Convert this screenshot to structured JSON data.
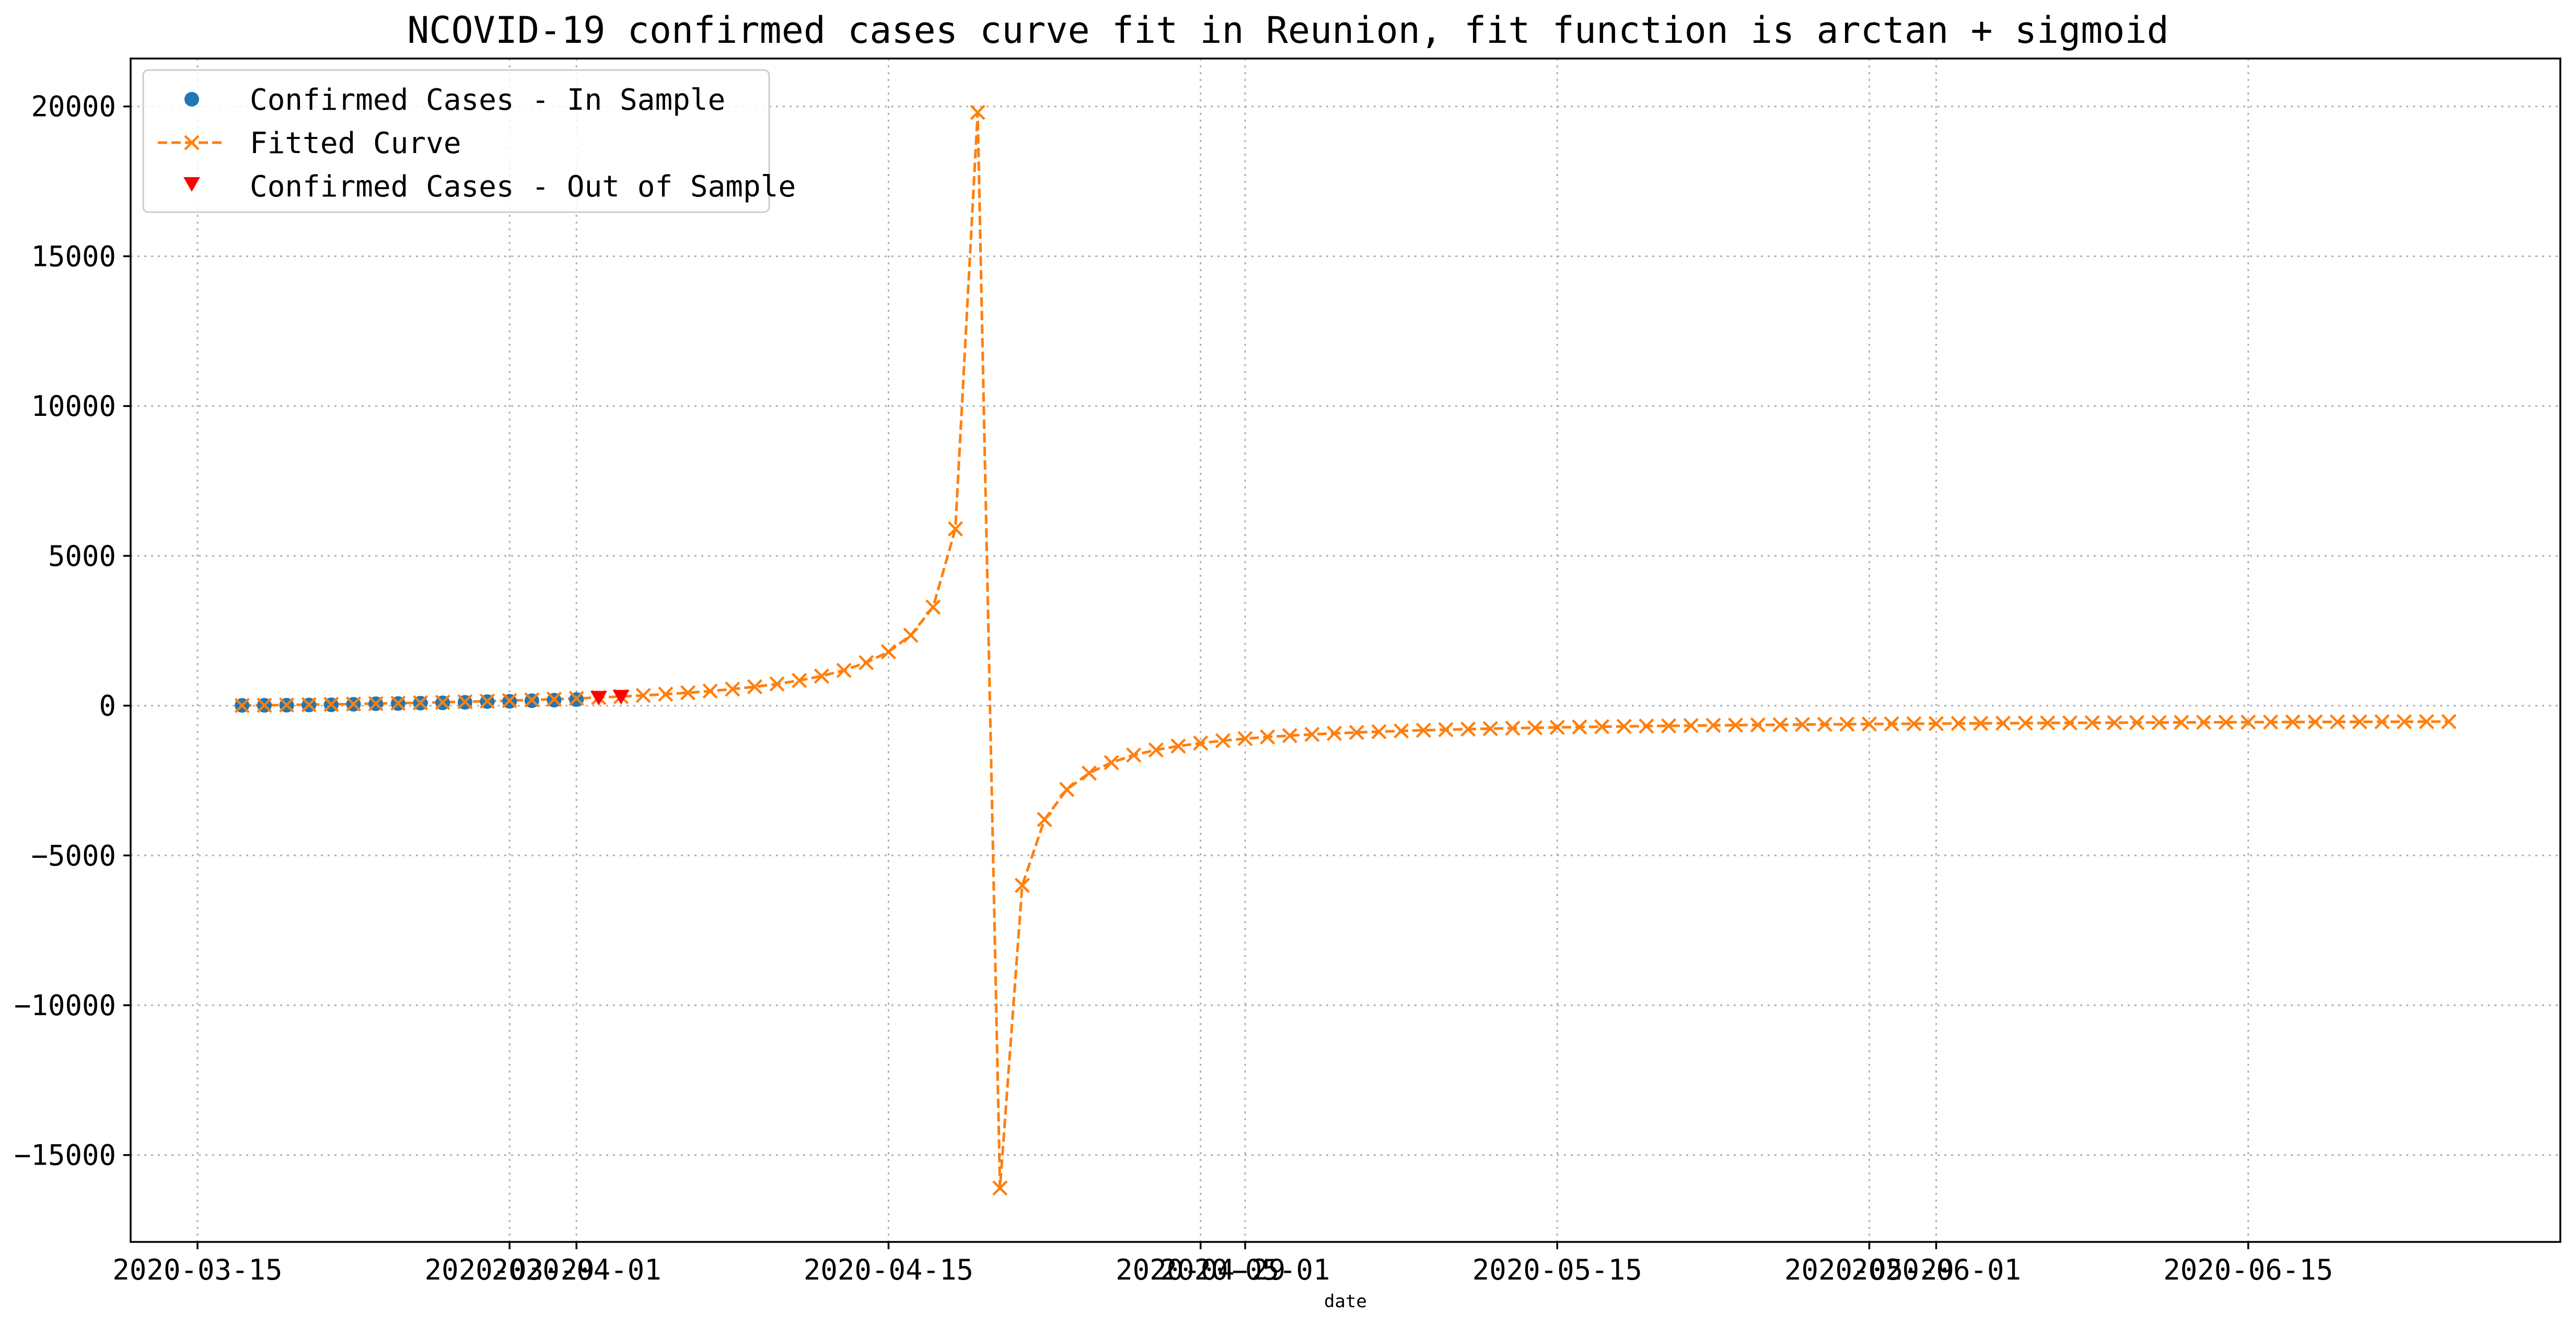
{
  "chart_data": {
    "type": "line",
    "title": "NCOVID-19 confirmed cases curve fit in Reunion, fit function is arctan + sigmoid",
    "xlabel": "date",
    "ylabel": "",
    "xlim": [
      "2020-03-12",
      "2020-06-29"
    ],
    "ylim": [
      -17900,
      21600
    ],
    "grid": true,
    "legend_position": "upper-left",
    "x_ticks": [
      {
        "date": "2020-03-15",
        "label": "2020-03-15"
      },
      {
        "date": "2020-03-29",
        "label": "2020-03-29"
      },
      {
        "date": "2020-04-01",
        "label": "2020-04-01"
      },
      {
        "date": "2020-04-15",
        "label": "2020-04-15"
      },
      {
        "date": "2020-04-29",
        "label": "2020-04-29"
      },
      {
        "date": "2020-05-01",
        "label": "2020-05-01"
      },
      {
        "date": "2020-05-15",
        "label": "2020-05-15"
      },
      {
        "date": "2020-05-29",
        "label": "2020-05-29"
      },
      {
        "date": "2020-06-01",
        "label": "2020-06-01"
      },
      {
        "date": "2020-06-15",
        "label": "2020-06-15"
      }
    ],
    "y_ticks": [
      -15000,
      -10000,
      -5000,
      0,
      5000,
      10000,
      15000,
      20000
    ],
    "series": [
      {
        "name": "Confirmed Cases - In Sample",
        "kind": "scatter",
        "marker": "circle",
        "color": "#1f77b4",
        "x": [
          "2020-03-17",
          "2020-03-18",
          "2020-03-19",
          "2020-03-20",
          "2020-03-21",
          "2020-03-22",
          "2020-03-23",
          "2020-03-24",
          "2020-03-25",
          "2020-03-26",
          "2020-03-27",
          "2020-03-28",
          "2020-03-29",
          "2020-03-30",
          "2020-03-31",
          "2020-04-01"
        ],
        "y": [
          9,
          12,
          15,
          21,
          28,
          45,
          64,
          71,
          83,
          94,
          111,
          135,
          145,
          164,
          183,
          203
        ]
      },
      {
        "name": "Fitted Curve",
        "kind": "line",
        "marker": "x",
        "linestyle": "dashed",
        "color": "#ff7f0e",
        "x_start": "2020-03-17",
        "x_step_days": 1,
        "y": [
          5,
          13,
          22,
          32,
          43,
          55,
          68,
          82,
          97,
          113,
          130,
          149,
          169,
          191,
          215,
          241,
          271,
          304,
          341,
          383,
          431,
          487,
          552,
          630,
          724,
          840,
          987,
          1178,
          1435,
          1798,
          2350,
          3290,
          5900,
          19800,
          -16100,
          -6000,
          -3800,
          -2800,
          -2250,
          -1900,
          -1650,
          -1480,
          -1350,
          -1250,
          -1170,
          -1100,
          -1045,
          -1000,
          -960,
          -925,
          -895,
          -868,
          -844,
          -822,
          -802,
          -784,
          -768,
          -753,
          -739,
          -726,
          -714,
          -703,
          -692,
          -683,
          -674,
          -665,
          -657,
          -650,
          -643,
          -636,
          -630,
          -624,
          -618,
          -613,
          -608,
          -603,
          -598,
          -594,
          -590,
          -586,
          -582,
          -578,
          -575,
          -571,
          -568,
          -565,
          -562,
          -559,
          -556,
          -554,
          -551,
          -549,
          -546,
          -544,
          -542,
          -540,
          -538,
          -536,
          -534,
          -532
        ]
      },
      {
        "name": "Confirmed Cases - Out of Sample",
        "kind": "scatter",
        "marker": "triangle-down",
        "color": "#ff0000",
        "x": [
          "2020-04-02",
          "2020-04-03"
        ],
        "y": [
          247,
          281
        ]
      }
    ]
  }
}
